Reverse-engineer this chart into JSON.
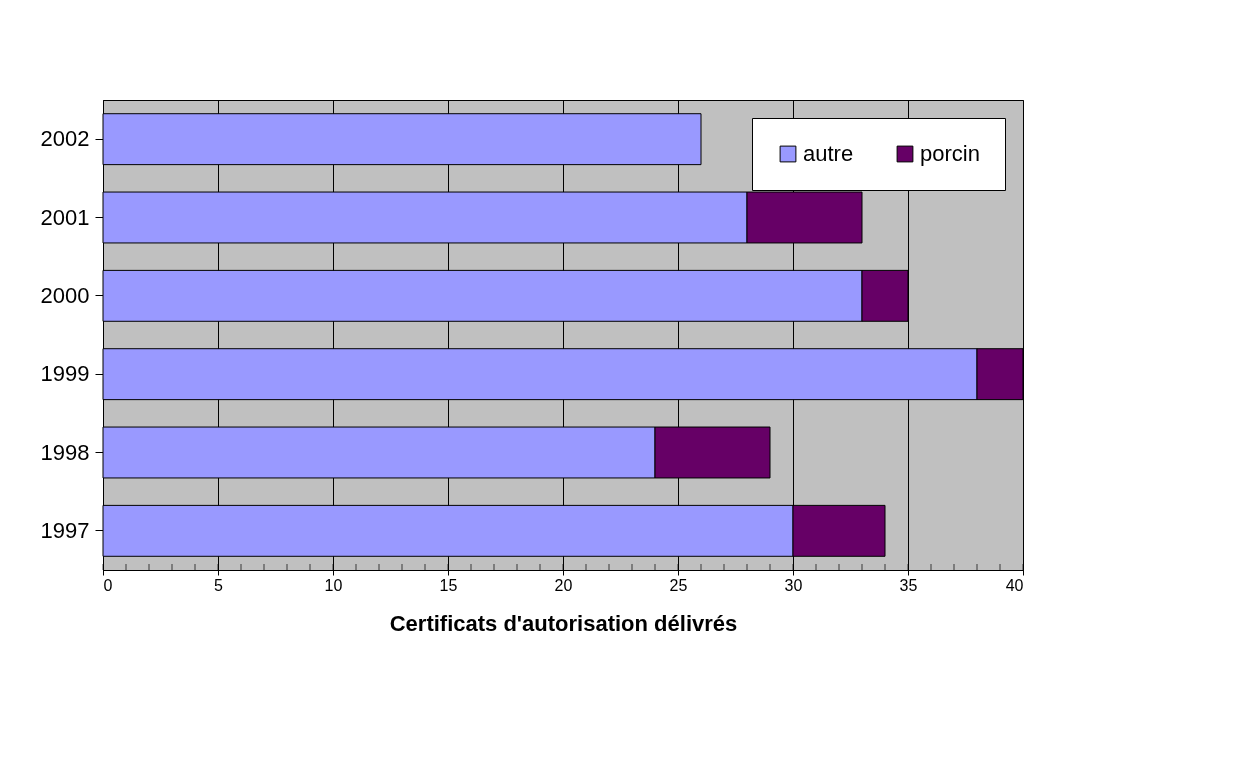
{
  "chart_data": {
    "type": "bar",
    "orientation": "horizontal",
    "stacked": true,
    "categories": [
      "2002",
      "2001",
      "2000",
      "1999",
      "1998",
      "1997"
    ],
    "series": [
      {
        "name": "autre",
        "color": "#9999ff",
        "values": [
          26,
          28,
          33,
          38,
          24,
          30
        ]
      },
      {
        "name": "porcin",
        "color": "#660066",
        "values": [
          null,
          5,
          2,
          2,
          5,
          4
        ]
      }
    ],
    "xlabel": "Certificats d'autorisation délivrés",
    "xlim": [
      0,
      40
    ],
    "xticks": [
      0,
      5,
      10,
      15,
      20,
      25,
      30,
      35,
      40
    ],
    "grid": "x",
    "legend": "top right"
  }
}
